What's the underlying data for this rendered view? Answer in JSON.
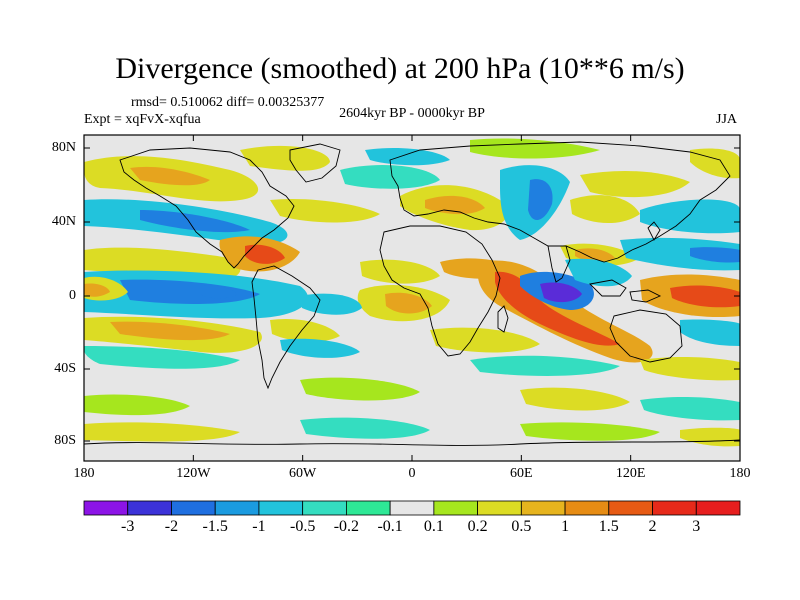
{
  "title": "Divergence (smoothed) at 200 hPa (10**6 m/s)",
  "stats_text": "rmsd= 0.510062 diff= 0.00325377",
  "period_text": "2604kyr BP - 0000kyr BP",
  "expt_text": "Expt = xqFvX-xqfua",
  "season_text": "JJA",
  "lon_ticks": [
    "180",
    "120W",
    "60W",
    "0",
    "60E",
    "120E",
    "180"
  ],
  "lat_ticks": [
    "80N",
    "40N",
    "0",
    "40S",
    "80S"
  ],
  "colorbar": {
    "labels": [
      "-3",
      "-2",
      "-1.5",
      "-1",
      "-0.5",
      "-0.2",
      "-0.1",
      "0.1",
      "0.2",
      "0.5",
      "1",
      "1.5",
      "2",
      "3"
    ],
    "colors": [
      "#8c14e6",
      "#3c32d8",
      "#1f6fe0",
      "#1b9be0",
      "#22c3dc",
      "#34ddc0",
      "#2ee896",
      "#e6e6e6",
      "#a6e61e",
      "#dcdc24",
      "#e6b41e",
      "#e68c14",
      "#e65a14",
      "#e62a1a",
      "#e61e1e"
    ]
  },
  "field_palette": {
    "neg_strong": "#5a2cd8",
    "neg_mid": "#1f7fe0",
    "neg_weak": "#22c3dc",
    "neg_faint": "#34ddc0",
    "pos_faint": "#a6e61e",
    "pos_weak": "#dcdc24",
    "pos_mid": "#e6a41e",
    "pos_strong": "#e64a18",
    "neutral": "#e6e6e6"
  }
}
